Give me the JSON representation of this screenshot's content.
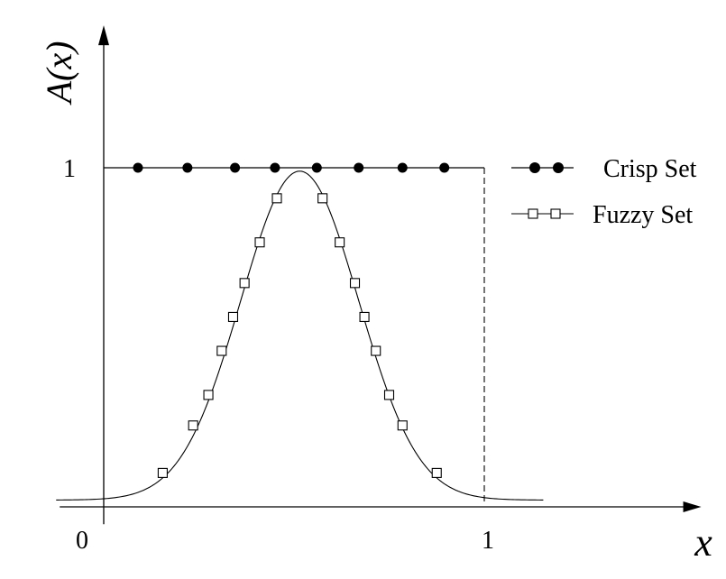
{
  "chart_data": {
    "type": "line",
    "title": "",
    "xlabel": "x",
    "ylabel": "A(x)",
    "xlim": [
      -0.125,
      1.57
    ],
    "ylim": [
      -0.03,
      1.42
    ],
    "grid": false,
    "legend_position": "top-right",
    "x_ticks": [
      {
        "value": 0,
        "label": "0"
      },
      {
        "value": 1,
        "label": "1"
      }
    ],
    "y_ticks": [
      {
        "value": 1,
        "label": "1"
      }
    ],
    "series": [
      {
        "name": "Crisp Set",
        "marker": "filled-circle",
        "support": [
          0,
          1
        ],
        "points": [
          [
            0.09,
            1
          ],
          [
            0.22,
            1
          ],
          [
            0.345,
            1
          ],
          [
            0.45,
            1
          ],
          [
            0.56,
            1
          ],
          [
            0.67,
            1
          ],
          [
            0.785,
            1
          ],
          [
            0.895,
            1
          ]
        ]
      },
      {
        "name": "Fuzzy Set",
        "marker": "open-square",
        "curve": {
          "shape": "gaussian",
          "center": 0.515,
          "sigma": 0.155,
          "peak": 0.97
        },
        "x_range": [
          -0.125,
          1.155
        ],
        "points": [
          [
            0.155,
            0.1
          ],
          [
            0.235,
            0.24
          ],
          [
            0.275,
            0.33
          ],
          [
            0.31,
            0.46
          ],
          [
            0.34,
            0.56
          ],
          [
            0.37,
            0.66
          ],
          [
            0.41,
            0.78
          ],
          [
            0.455,
            0.91
          ],
          [
            0.575,
            0.91
          ],
          [
            0.62,
            0.78
          ],
          [
            0.66,
            0.66
          ],
          [
            0.685,
            0.56
          ],
          [
            0.715,
            0.46
          ],
          [
            0.75,
            0.33
          ],
          [
            0.785,
            0.24
          ],
          [
            0.875,
            0.1
          ]
        ]
      }
    ]
  }
}
